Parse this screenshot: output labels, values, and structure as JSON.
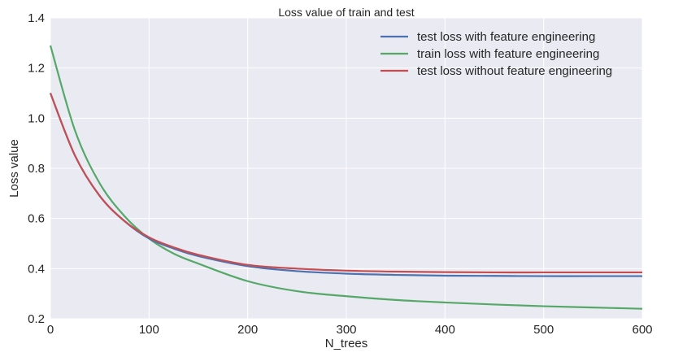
{
  "chart_data": {
    "type": "line",
    "title": "Loss value of train and test",
    "xlabel": "N_trees",
    "ylabel": "Loss value",
    "xlim": [
      0,
      600
    ],
    "ylim": [
      0.2,
      1.4
    ],
    "xticks": [
      0,
      100,
      200,
      300,
      400,
      500,
      600
    ],
    "yticks": [
      0.2,
      0.4,
      0.6,
      0.8,
      1.0,
      1.2,
      1.4
    ],
    "xtick_labels": [
      "0",
      "100",
      "200",
      "300",
      "400",
      "500",
      "600"
    ],
    "ytick_labels": [
      "0.2",
      "0.4",
      "0.6",
      "0.8",
      "1.0",
      "1.2",
      "1.4"
    ],
    "grid": true,
    "legend_position": "top-right",
    "background": "#eaeaf2",
    "x": [
      0,
      25,
      50,
      75,
      100,
      125,
      150,
      200,
      250,
      300,
      350,
      400,
      450,
      500,
      550,
      600
    ],
    "series": [
      {
        "name": "test loss with feature engineering",
        "color": "#4c72b0",
        "values": [
          1.1,
          0.85,
          0.69,
          0.59,
          0.52,
          0.48,
          0.45,
          0.41,
          0.39,
          0.38,
          0.375,
          0.372,
          0.371,
          0.37,
          0.37,
          0.37
        ]
      },
      {
        "name": "train loss with feature engineering",
        "color": "#55a868",
        "values": [
          1.29,
          0.95,
          0.74,
          0.61,
          0.52,
          0.46,
          0.42,
          0.35,
          0.31,
          0.29,
          0.275,
          0.265,
          0.257,
          0.25,
          0.245,
          0.24
        ]
      },
      {
        "name": "test loss without feature engineering",
        "color": "#c44e52",
        "values": [
          1.1,
          0.85,
          0.69,
          0.59,
          0.525,
          0.485,
          0.455,
          0.415,
          0.4,
          0.392,
          0.388,
          0.386,
          0.385,
          0.385,
          0.385,
          0.385
        ]
      }
    ]
  }
}
